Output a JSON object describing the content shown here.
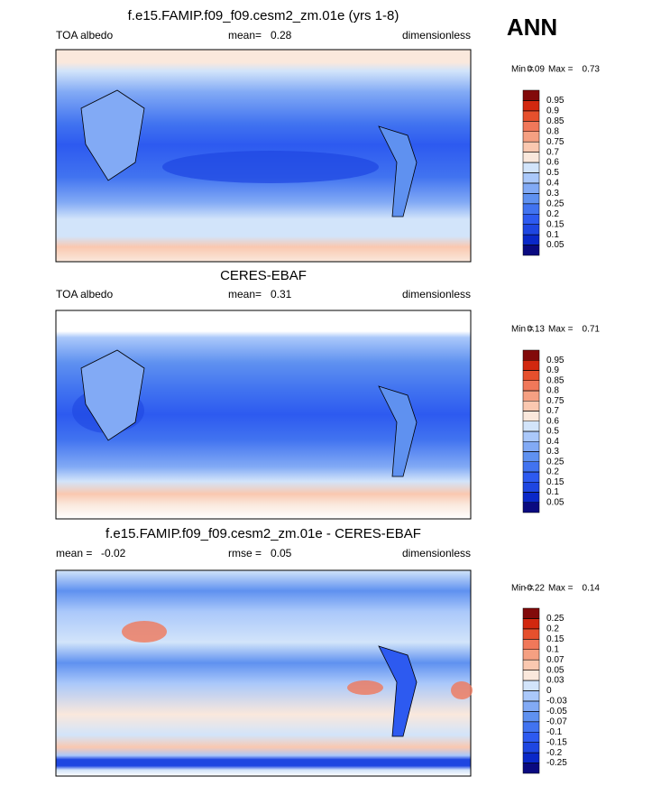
{
  "header": "ANN",
  "colors_low_to_high": [
    "#0a0a80",
    "#0a28c8",
    "#1e46e1",
    "#2d5af0",
    "#4173f0",
    "#5f91f0",
    "#82aaf5",
    "#aac8fa",
    "#d2e4fa",
    "#fae8dc",
    "#fac8b0",
    "#f5a082",
    "#f0785a",
    "#e6502d",
    "#d2280f",
    "#820a0a"
  ],
  "panels": [
    {
      "title": "f.e15.FAMIP.f09_f09.cesm2_zm.01e (yrs 1-8)",
      "left": "TOA albedo",
      "center_label": "mean=",
      "center_value": 0.28,
      "right": "dimensionless",
      "min_label": "Min =",
      "min": 0.09,
      "max_label": "Max =",
      "max": 0.73,
      "levels": [
        0.05,
        0.1,
        0.15,
        0.2,
        0.25,
        0.3,
        0.4,
        0.5,
        0.6,
        0.7,
        0.75,
        0.8,
        0.85,
        0.9,
        0.95
      ]
    },
    {
      "title": "CERES-EBAF",
      "left": "TOA albedo",
      "center_label": "mean=",
      "center_value": 0.31,
      "right": "dimensionless",
      "min_label": "Min =",
      "min": 0.13,
      "max_label": "Max =",
      "max": 0.71,
      "levels": [
        0.05,
        0.1,
        0.15,
        0.2,
        0.25,
        0.3,
        0.4,
        0.5,
        0.6,
        0.7,
        0.75,
        0.8,
        0.85,
        0.9,
        0.95
      ]
    },
    {
      "title": "f.e15.FAMIP.f09_f09.cesm2_zm.01e - CERES-EBAF",
      "left_label": "mean =",
      "left_value": -0.02,
      "center_label": "rmse =",
      "center_value": 0.05,
      "right": "dimensionless",
      "min_label": "Min =",
      "min": -0.22,
      "max_label": "Max =",
      "max": 0.14,
      "levels": [
        -0.25,
        -0.2,
        -0.15,
        -0.1,
        -0.07,
        -0.05,
        -0.03,
        0,
        0.03,
        0.05,
        0.07,
        0.1,
        0.15,
        0.2,
        0.25
      ]
    }
  ]
}
